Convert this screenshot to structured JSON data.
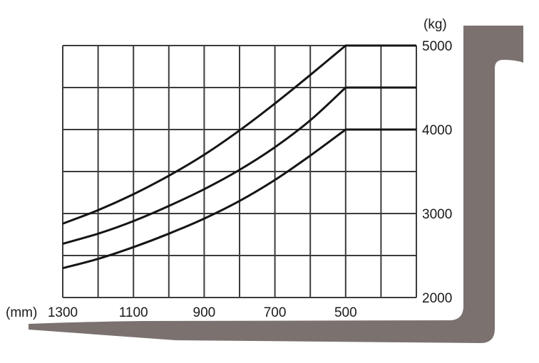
{
  "chart_data": {
    "type": "line",
    "title": "",
    "xlabel": "(mm)",
    "ylabel": "(kg)",
    "x_reversed": true,
    "xlim": [
      1300,
      300
    ],
    "ylim": [
      2000,
      5000
    ],
    "x_ticks": [
      1300,
      1100,
      900,
      700,
      500
    ],
    "y_ticks": [
      2000,
      3000,
      4000,
      5000
    ],
    "x_gridlines": [
      1300,
      1200,
      1100,
      1000,
      900,
      800,
      700,
      600,
      500,
      400,
      300
    ],
    "y_gridlines": [
      2000,
      2500,
      3000,
      3500,
      4000,
      4500,
      5000
    ],
    "grid": true,
    "series": [
      {
        "x": [
          1300,
          1200,
          1100,
          1000,
          900,
          800,
          700,
          600,
          500,
          300
        ],
        "values": [
          2880,
          3040,
          3230,
          3450,
          3700,
          3990,
          4310,
          4650,
          5000,
          5000
        ]
      },
      {
        "x": [
          1300,
          1200,
          1100,
          1000,
          900,
          800,
          700,
          600,
          500,
          300
        ],
        "values": [
          2640,
          2760,
          2910,
          3090,
          3290,
          3520,
          3790,
          4110,
          4500,
          4500
        ]
      },
      {
        "x": [
          1300,
          1200,
          1100,
          1000,
          900,
          800,
          700,
          600,
          500,
          300
        ],
        "values": [
          2350,
          2460,
          2600,
          2760,
          2940,
          3150,
          3400,
          3690,
          4000,
          4000
        ]
      }
    ]
  },
  "colors": {
    "fork": "#7b7270",
    "lines": "#151515",
    "grid": "#3c3c3c"
  }
}
